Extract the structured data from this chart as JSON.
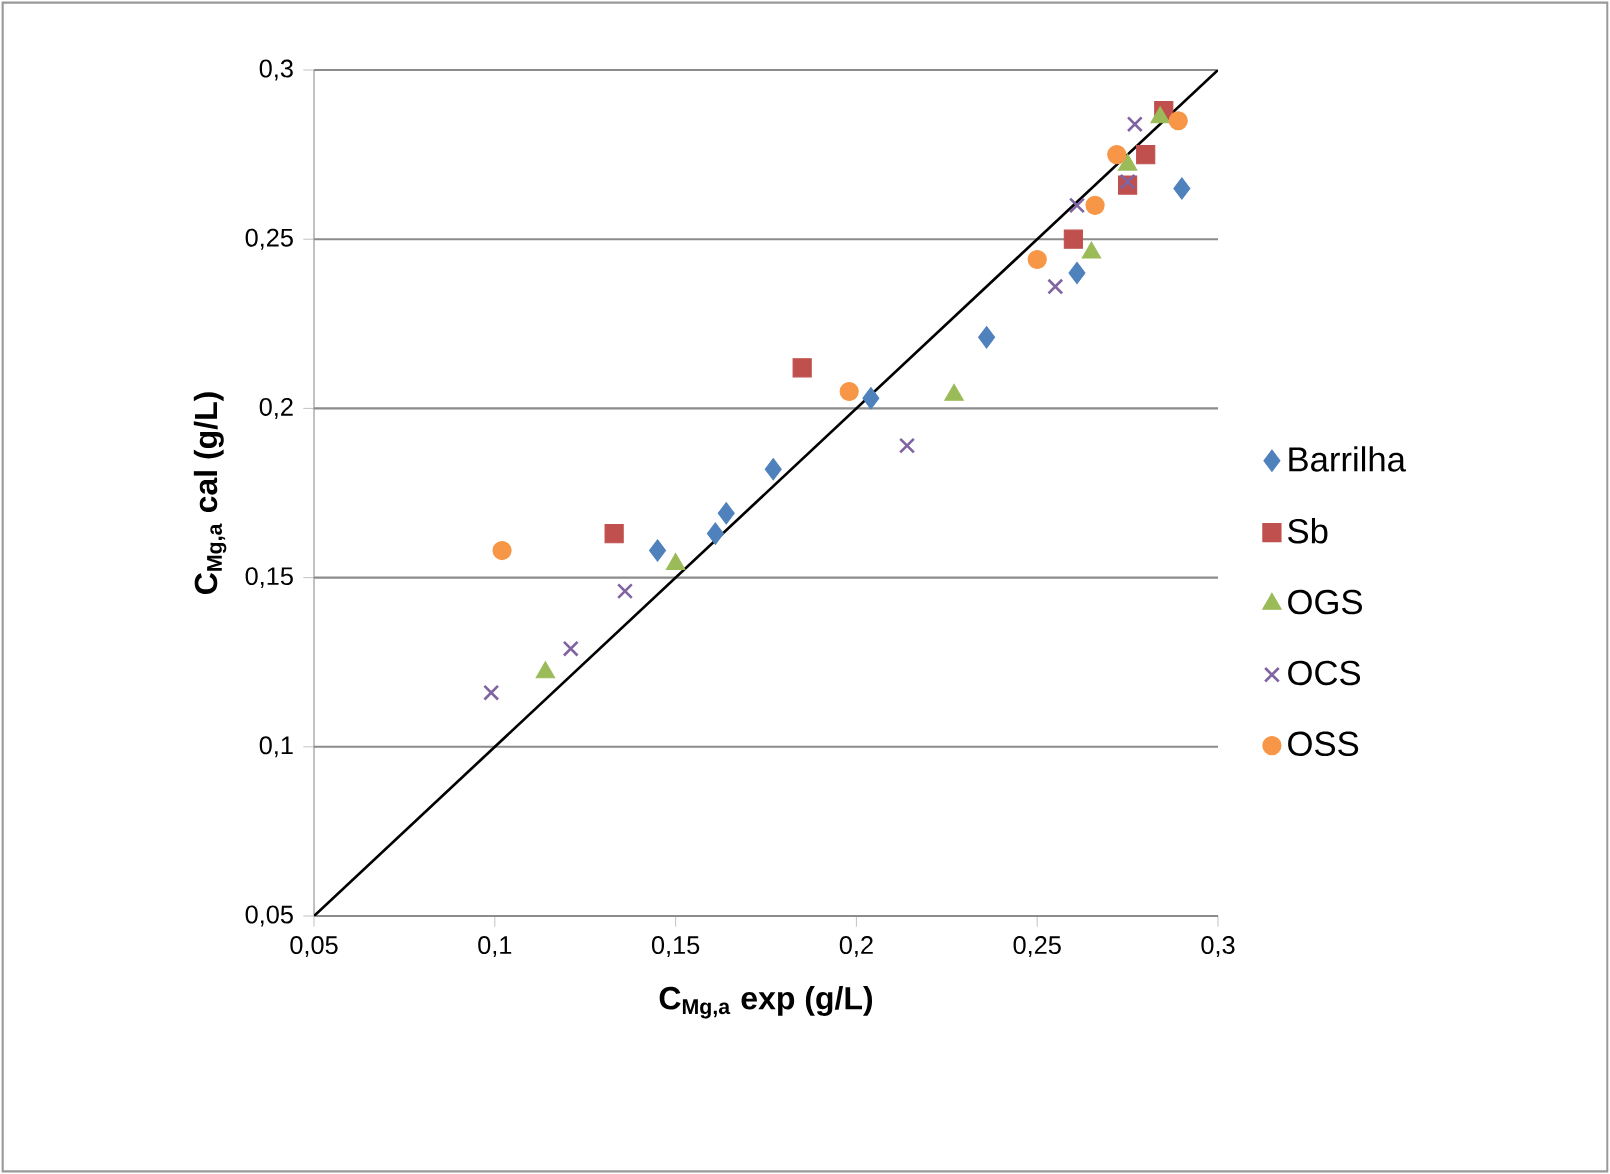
{
  "chart_data": {
    "type": "scatter",
    "xlabel": "C$_{Mg,a}$ exp (g/L)",
    "ylabel": "C$_{Mg,a}$ cal (g/L)",
    "xlim": [
      0.05,
      0.3
    ],
    "ylim": [
      0.05,
      0.3
    ],
    "xticks": [
      {
        "value": 0.05,
        "label": "0,05"
      },
      {
        "value": 0.1,
        "label": "0,1"
      },
      {
        "value": 0.15,
        "label": "0,15"
      },
      {
        "value": 0.2,
        "label": "0,2"
      },
      {
        "value": 0.25,
        "label": "0,25"
      },
      {
        "value": 0.3,
        "label": "0,3"
      }
    ],
    "yticks": [
      {
        "value": 0.05,
        "label": "0,05"
      },
      {
        "value": 0.1,
        "label": "0,1"
      },
      {
        "value": 0.15,
        "label": "0,15"
      },
      {
        "value": 0.2,
        "label": "0,2"
      },
      {
        "value": 0.25,
        "label": "0,25"
      },
      {
        "value": 0.3,
        "label": "0,3"
      }
    ],
    "grid": "y",
    "legend": "right",
    "series": [
      {
        "name": "Barrilha",
        "color": "#4f81bd",
        "marker": "diamond",
        "x": [
          0.145,
          0.161,
          0.164,
          0.177,
          0.204,
          0.236,
          0.261,
          0.29
        ],
        "values": [
          0.158,
          0.163,
          0.169,
          0.182,
          0.203,
          0.221,
          0.24,
          0.265
        ]
      },
      {
        "name": "Sb",
        "color": "#c0504d",
        "marker": "square",
        "x": [
          0.133,
          0.185,
          0.26,
          0.275,
          0.28,
          0.285
        ],
        "values": [
          0.163,
          0.212,
          0.25,
          0.266,
          0.275,
          0.288
        ]
      },
      {
        "name": "OGS",
        "color": "#9bbb59",
        "marker": "triangle",
        "x": [
          0.114,
          0.15,
          0.227,
          0.265,
          0.275,
          0.284
        ],
        "values": [
          0.122,
          0.154,
          0.204,
          0.246,
          0.272,
          0.286
        ]
      },
      {
        "name": "OCS",
        "color": "#8064a2",
        "marker": "cross",
        "x": [
          0.099,
          0.121,
          0.136,
          0.214,
          0.255,
          0.261,
          0.275,
          0.277
        ],
        "values": [
          0.116,
          0.129,
          0.146,
          0.189,
          0.236,
          0.26,
          0.267,
          0.284
        ]
      },
      {
        "name": "OSS",
        "color": "#f79646",
        "marker": "circle",
        "x": [
          0.102,
          0.198,
          0.25,
          0.266,
          0.272,
          0.289
        ],
        "values": [
          0.158,
          0.205,
          0.244,
          0.26,
          0.275,
          0.285
        ]
      },
      {
        "type": "line",
        "color": "#000000",
        "line_style": "solid",
        "x": [
          0.05,
          0.3
        ],
        "values": [
          0.05,
          0.3
        ]
      }
    ]
  }
}
